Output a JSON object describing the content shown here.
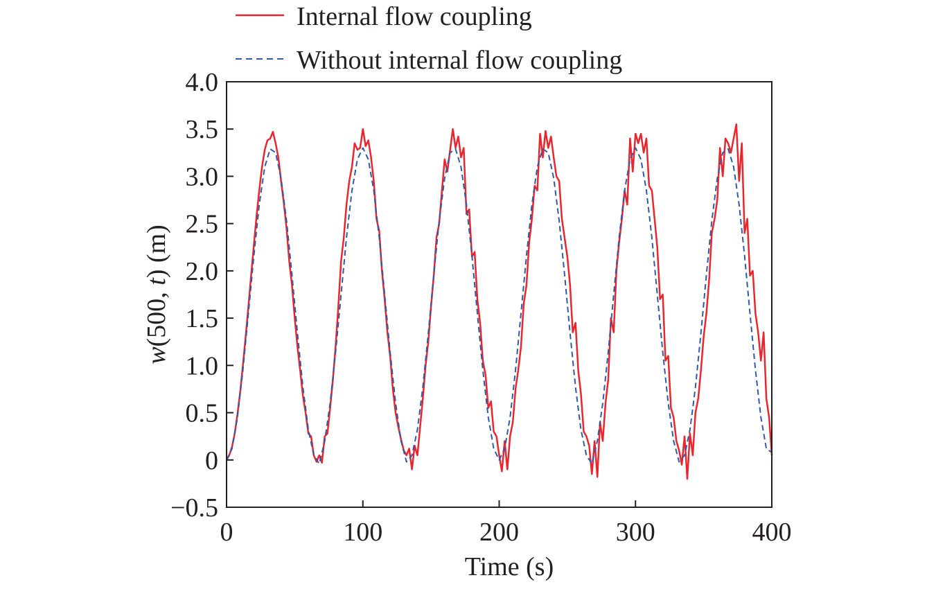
{
  "chart_data": {
    "type": "line",
    "title": "",
    "xlabel": "Time (s)",
    "ylabel": {
      "prefix_italic": "w",
      "middle": "(500, ",
      "var_italic": "t",
      "suffix": ") (m)"
    },
    "xlim": [
      0,
      400
    ],
    "ylim": [
      -0.5,
      4.0
    ],
    "xticks": [
      0,
      100,
      200,
      300,
      400
    ],
    "xtick_labels": [
      "0",
      "100",
      "200",
      "300",
      "400"
    ],
    "yticks": [
      -0.5,
      0,
      0.5,
      1.0,
      1.5,
      2.0,
      2.5,
      3.0,
      3.5,
      4.0
    ],
    "ytick_labels": [
      "−0.5",
      "0",
      "0.5",
      "1.0",
      "1.5",
      "2.0",
      "2.5",
      "3.0",
      "3.5",
      "4.0"
    ],
    "grid": false,
    "legend_position": "top-outside",
    "series": [
      {
        "name": "Internal flow coupling",
        "color": "#e8262d",
        "style": "solid",
        "x_start": 0,
        "x_step": 2,
        "values": [
          0,
          0.05,
          0.14,
          0.28,
          0.48,
          0.72,
          1.0,
          1.3,
          1.62,
          1.95,
          2.27,
          2.58,
          2.85,
          3.1,
          3.28,
          3.38,
          3.4,
          3.47,
          3.35,
          3.2,
          2.95,
          2.72,
          2.45,
          2.1,
          1.85,
          1.5,
          1.2,
          0.95,
          0.68,
          0.5,
          0.28,
          0.25,
          0.05,
          -0.02,
          0.05,
          -0.03,
          0.25,
          0.28,
          0.55,
          0.85,
          1.2,
          1.62,
          2.1,
          2.35,
          2.7,
          2.95,
          3.1,
          3.35,
          3.28,
          3.3,
          3.5,
          3.32,
          3.38,
          3.2,
          2.95,
          2.55,
          2.42,
          2.0,
          1.7,
          1.35,
          1.1,
          0.75,
          0.5,
          0.35,
          0.22,
          0.1,
          0.05,
          0.12,
          -0.1,
          0.15,
          0.05,
          0.35,
          0.65,
          1.0,
          1.25,
          1.62,
          1.95,
          2.35,
          2.5,
          2.85,
          3.18,
          3.05,
          3.28,
          3.5,
          3.3,
          3.42,
          3.2,
          3.3,
          2.6,
          2.65,
          2.15,
          2.2,
          1.7,
          1.45,
          1.05,
          0.9,
          0.55,
          0.62,
          0.3,
          0.25,
          0.05,
          -0.12,
          0.2,
          -0.1,
          0.25,
          0.4,
          0.75,
          0.95,
          1.2,
          1.65,
          1.85,
          2.3,
          2.55,
          2.9,
          2.85,
          3.45,
          3.2,
          3.48,
          3.3,
          3.42,
          3.2,
          3.0,
          2.95,
          2.55,
          2.35,
          2.15,
          1.85,
          1.35,
          1.45,
          0.95,
          0.7,
          0.3,
          0.25,
          0.15,
          -0.15,
          0.2,
          -0.18,
          0.4,
          0.2,
          0.6,
          0.85,
          1.5,
          1.35,
          2.0,
          2.3,
          2.55,
          2.85,
          2.7,
          3.4,
          3.05,
          3.45,
          3.35,
          3.45,
          3.25,
          3.4,
          2.9,
          2.85,
          2.55,
          2.25,
          1.7,
          1.75,
          1.05,
          1.1,
          0.55,
          0.45,
          0.2,
          0.1,
          -0.05,
          0.25,
          -0.2,
          0.28,
          0.05,
          0.5,
          0.65,
          0.95,
          1.3,
          1.55,
          1.9,
          2.4,
          2.55,
          2.75,
          3.3,
          3.0,
          3.4,
          3.35,
          3.25,
          3.4,
          3.55,
          2.95,
          3.35,
          2.4,
          2.55,
          1.95,
          2.0,
          1.55,
          1.35,
          1.05,
          1.35,
          0.65,
          0.45,
          0.05
        ]
      },
      {
        "name": "Without internal flow coupling",
        "color": "#2e5aa8",
        "style": "dashed",
        "x_start": 0,
        "x_step": 4,
        "values": [
          0,
          0.12,
          0.45,
          0.95,
          1.55,
          2.16,
          2.7,
          3.1,
          3.29,
          3.25,
          2.98,
          2.53,
          1.96,
          1.34,
          0.77,
          0.32,
          0.05,
          -0.04,
          0.2,
          0.6,
          1.14,
          1.75,
          2.35,
          2.85,
          3.18,
          3.3,
          3.18,
          2.85,
          2.35,
          1.75,
          1.14,
          0.6,
          0.2,
          -0.02,
          0.05,
          0.32,
          0.77,
          1.34,
          1.96,
          2.53,
          2.98,
          3.25,
          3.29,
          3.1,
          2.7,
          2.16,
          1.55,
          0.95,
          0.45,
          0.12,
          0,
          0.12,
          0.45,
          0.95,
          1.55,
          2.16,
          2.7,
          3.1,
          3.29,
          3.25,
          2.98,
          2.53,
          1.96,
          1.34,
          0.77,
          0.32,
          0.05,
          -0.04,
          0.2,
          0.6,
          1.14,
          1.75,
          2.35,
          2.85,
          3.18,
          3.3,
          3.18,
          2.85,
          2.35,
          1.75,
          1.14,
          0.6,
          0.2,
          -0.02,
          0.05,
          0.32,
          0.77,
          1.34,
          1.96,
          2.53,
          2.98,
          3.25,
          3.29,
          3.1,
          2.7,
          2.16,
          1.55,
          0.95,
          0.45,
          0.12,
          0.08
        ]
      }
    ]
  }
}
